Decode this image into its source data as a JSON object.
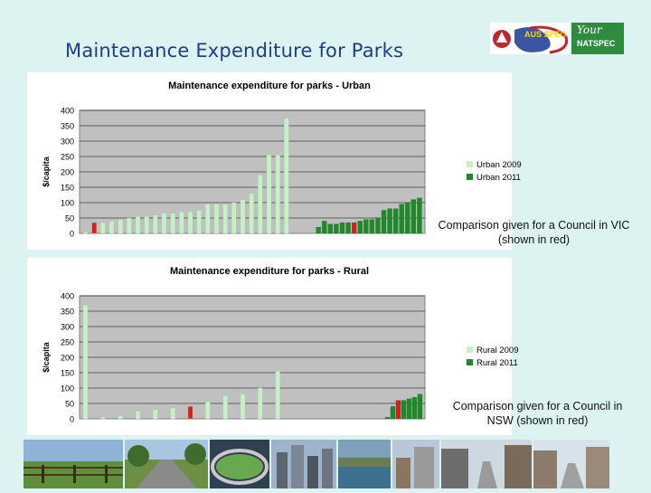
{
  "slide": {
    "title": "Maintenance Expenditure for Parks",
    "logos": {
      "ausspec_text": "AUS SPEC",
      "natspec_script": "Your",
      "natspec_text": "NATSPEC"
    },
    "notes": {
      "urban": "Comparison given for a Council in VIC (shown in red)",
      "rural": "Comparison given for a Council in NSW (shown in red)"
    }
  },
  "colors": {
    "series_2009": "#c8f0c8",
    "series_2011": "#1f8a2a",
    "highlight": "#e01b1b",
    "plot_bg": "#c0c0c0",
    "title_text": "#1f3e86"
  },
  "chart_data": [
    {
      "type": "bar",
      "title": "Maintenance expenditure for parks - Urban",
      "ylabel": "$/capita",
      "xlabel": "",
      "ylim": [
        0,
        400
      ],
      "yticks": [
        "0",
        "50",
        "100",
        "150",
        "200",
        "250",
        "300",
        "350",
        "400"
      ],
      "grid": true,
      "legend_placement": "right",
      "series": [
        {
          "name": "Urban 2009",
          "color": "#c8f0c8",
          "values": [
            5,
            35,
            35,
            40,
            45,
            50,
            55,
            55,
            60,
            65,
            65,
            70,
            70,
            75,
            95,
            95,
            95,
            100,
            110,
            130,
            190,
            255,
            255,
            375
          ]
        },
        {
          "name": "Urban 2011",
          "color": "#1f8a2a",
          "values": [
            0,
            0,
            0,
            20,
            40,
            30,
            30,
            35,
            35,
            35,
            40,
            45,
            45,
            50,
            75,
            80,
            80,
            95,
            100,
            110,
            115
          ]
        }
      ],
      "highlight": [
        {
          "series": "Urban 2009",
          "index": 1
        },
        {
          "series": "Urban 2011",
          "index": 9
        }
      ]
    },
    {
      "type": "bar",
      "title": "Maintenance expenditure for parks - Rural",
      "ylabel": "$/capita",
      "xlabel": "",
      "ylim": [
        0,
        400
      ],
      "yticks": [
        "0",
        "50",
        "100",
        "150",
        "200",
        "250",
        "300",
        "350",
        "400"
      ],
      "grid": true,
      "legend_placement": "right",
      "series": [
        {
          "name": "Rural 2009",
          "color": "#c8f0c8",
          "values": [
            370,
            5,
            10,
            25,
            30,
            35,
            40,
            55,
            75,
            80,
            100,
            155
          ]
        },
        {
          "name": "Rural 2011",
          "color": "#1f8a2a",
          "values": [
            0,
            0,
            0,
            0,
            0,
            0,
            0,
            0,
            0,
            0,
            0,
            0,
            0,
            0,
            0,
            0,
            5,
            40,
            60,
            60,
            65,
            70,
            80
          ]
        }
      ],
      "highlight": [
        {
          "series": "Rural 2009",
          "index": 6
        },
        {
          "series": "Rural 2011",
          "index": 18
        }
      ]
    }
  ]
}
